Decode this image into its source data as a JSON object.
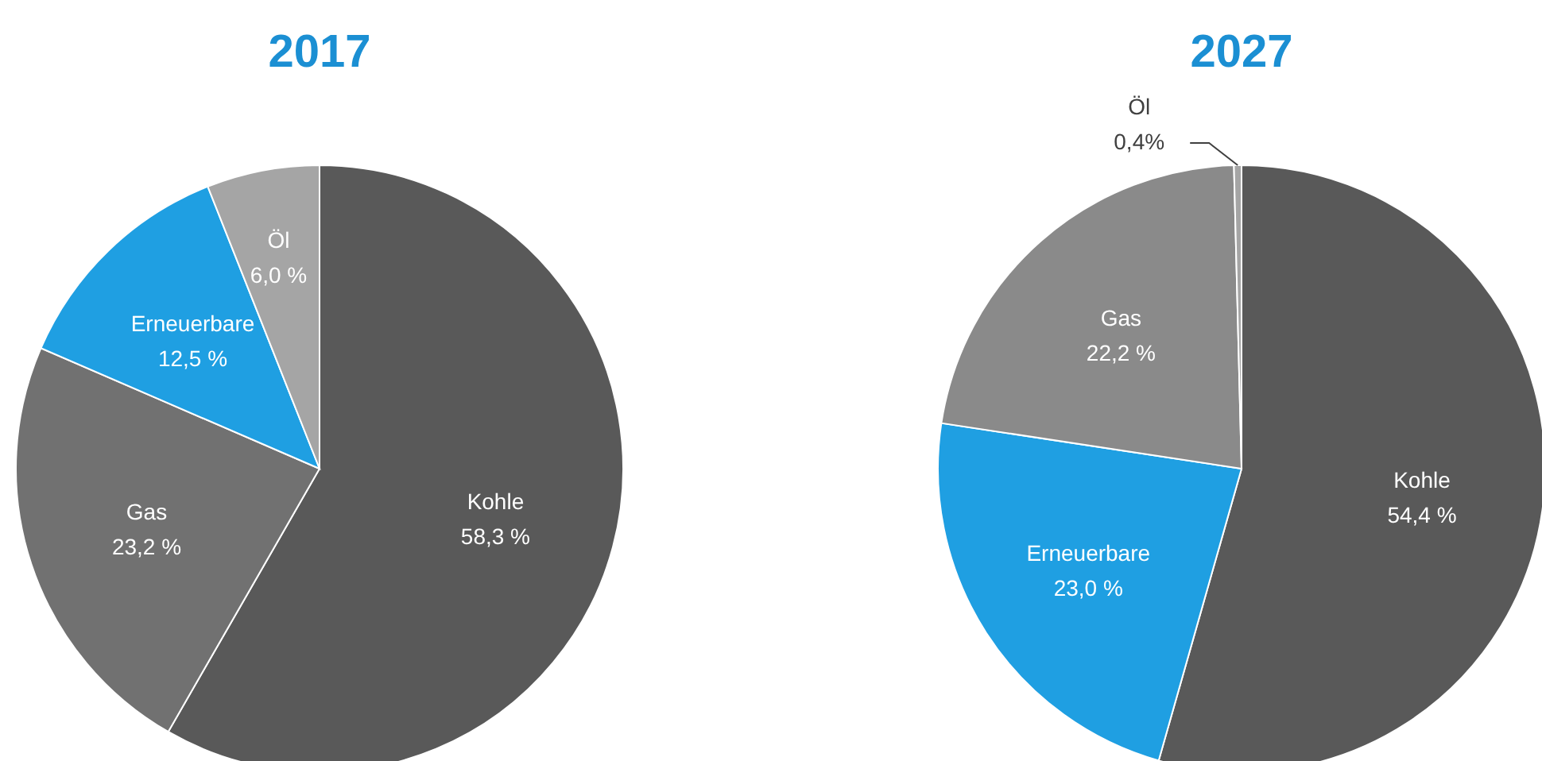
{
  "chart_data": [
    {
      "type": "pie",
      "title": "2017",
      "categories": [
        "Kohle",
        "Gas",
        "Erneuerbare",
        "Öl"
      ],
      "values": [
        58.3,
        23.2,
        12.5,
        6.0
      ],
      "colors": [
        "#595959",
        "#717171",
        "#1f9fe2",
        "#a5a5a5"
      ],
      "value_labels": [
        "58,3 %",
        "23,2 %",
        "12,5 %",
        "6,0 %"
      ]
    },
    {
      "type": "pie",
      "title": "2027",
      "categories": [
        "Kohle",
        "Erneuerbare",
        "Gas",
        "Öl"
      ],
      "values": [
        54.4,
        23.0,
        22.2,
        0.4
      ],
      "colors": [
        "#595959",
        "#1f9fe2",
        "#8a8a8a",
        "#a5a5a5"
      ],
      "value_labels": [
        "54,4 %",
        "23,0 %",
        "22,2 %",
        "0,4%"
      ]
    }
  ]
}
